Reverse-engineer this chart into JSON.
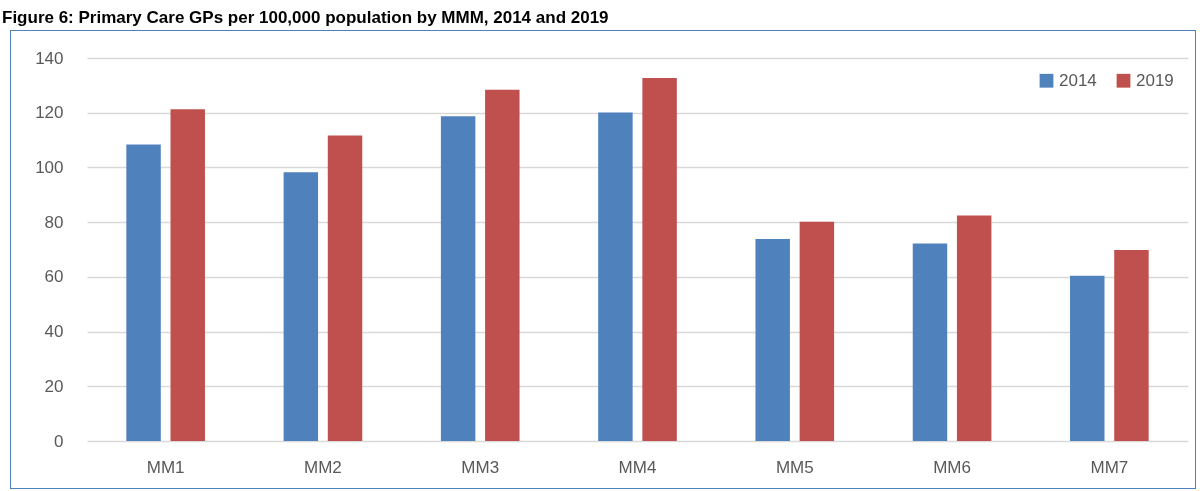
{
  "chart_data": {
    "type": "bar",
    "title": "Figure 6: Primary Care GPs per 100,000 population by MMM, 2014 and 2019",
    "categories": [
      "MM1",
      "MM2",
      "MM3",
      "MM4",
      "MM5",
      "MM6",
      "MM7"
    ],
    "series": [
      {
        "name": "2014",
        "color": "#4f81bd",
        "values": [
          108.4,
          98.2,
          118.7,
          120.1,
          73.8,
          72.2,
          60.4
        ]
      },
      {
        "name": "2019",
        "color": "#c0504d",
        "values": [
          121.3,
          111.7,
          128.4,
          132.7,
          80.1,
          82.4,
          69.8
        ]
      }
    ],
    "ylim": [
      0,
      140
    ],
    "yticks": [
      0,
      20,
      40,
      60,
      80,
      100,
      120,
      140
    ],
    "grid": "y",
    "legend": "top right"
  }
}
